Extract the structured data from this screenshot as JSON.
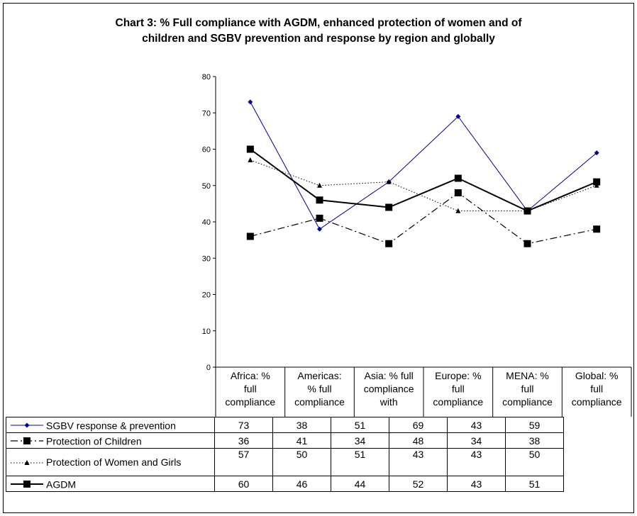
{
  "chart_data": {
    "type": "line",
    "title": "Chart 3: % Full compliance with AGDM, enhanced protection of women and of children and SGBV prevention and response by region and globally",
    "title_lines": [
      "Chart 3: % Full compliance with AGDM, enhanced protection of women and of",
      "children and SGBV prevention and response by region and globally"
    ],
    "categories": [
      "Africa: % full compliance",
      "Americas: % full compliance",
      "Asia: % full compliance with",
      "Europe: % full compliance",
      "MENA: % full compliance",
      "Global: % full compliance"
    ],
    "category_lines": [
      [
        "Africa: %",
        "full",
        "compliance"
      ],
      [
        "Americas:",
        "% full",
        "compliance"
      ],
      [
        "Asia: % full",
        "compliance",
        "with"
      ],
      [
        "Europe: %",
        "full",
        "compliance"
      ],
      [
        "MENA: %",
        "full",
        "compliance"
      ],
      [
        "Global: %",
        "full",
        "compliance"
      ]
    ],
    "y_ticks": [
      "0",
      "10",
      "20",
      "30",
      "40",
      "50",
      "60",
      "70",
      "80"
    ],
    "ylim": [
      0,
      80
    ],
    "grid": false,
    "legend": "data-table",
    "series": [
      {
        "name": "SGBV response & prevention",
        "values": [
          73,
          38,
          51,
          69,
          43,
          59
        ],
        "color": "#00008b",
        "marker": "diamond",
        "dash": "solid"
      },
      {
        "name": "Protection of Children",
        "values": [
          36,
          41,
          34,
          48,
          34,
          38
        ],
        "color": "#000000",
        "marker": "square",
        "dash": "dashdot"
      },
      {
        "name": "Protection of Women and Girls",
        "values": [
          57,
          50,
          51,
          43,
          43,
          50
        ],
        "color": "#000000",
        "marker": "triangle",
        "dash": "dotted"
      },
      {
        "name": "AGDM",
        "values": [
          60,
          46,
          44,
          52,
          43,
          51
        ],
        "color": "#000000",
        "marker": "square",
        "dash": "solid-thick"
      }
    ]
  }
}
